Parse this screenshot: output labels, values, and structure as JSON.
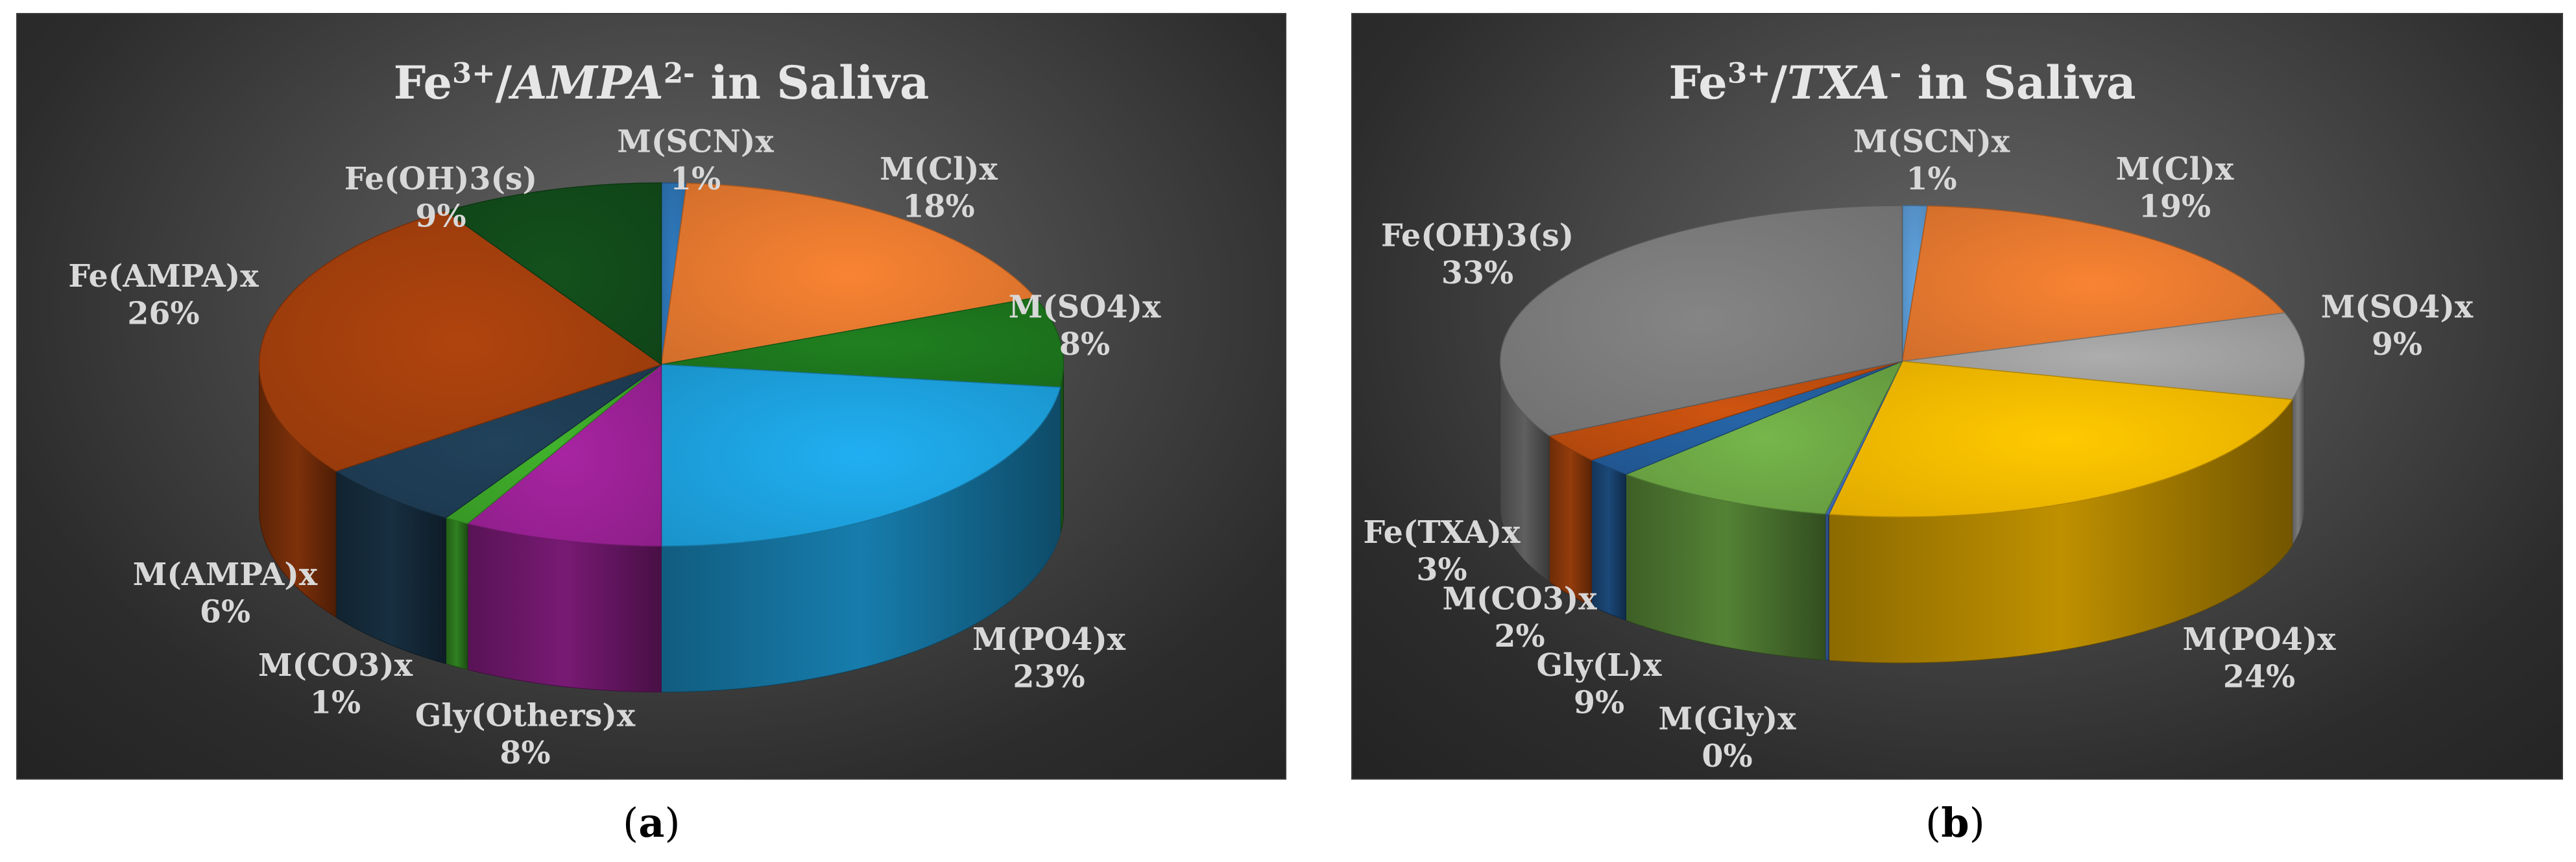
{
  "chart_data": [
    {
      "type": "pie",
      "title": {
        "base": "Fe",
        "sup1": "3+",
        "slash": "/",
        "ligand": "AMPA",
        "sup2": "2-",
        "rest": " in Saliva"
      },
      "slices": [
        {
          "label": "M(SCN)x",
          "percent_label": "1%",
          "value": 1,
          "color": "#2e75b6"
        },
        {
          "label": "M(Cl)x",
          "percent_label": "18%",
          "value": 18,
          "color": "#ed7d31"
        },
        {
          "label": "M(SO4)x",
          "percent_label": "8%",
          "value": 8,
          "color": "#1e7a1e"
        },
        {
          "label": "M(PO4)x",
          "percent_label": "23%",
          "value": 23,
          "color": "#1ea7e6"
        },
        {
          "label": "Gly(Others)x",
          "percent_label": "8%",
          "value": 8,
          "color": "#a0229a"
        },
        {
          "label": "M(CO3)x",
          "percent_label": "1%",
          "value": 1,
          "color": "#3eaa2a"
        },
        {
          "label": "M(AMPA)x",
          "percent_label": "6%",
          "value": 6,
          "color": "#1f3f57"
        },
        {
          "label": "Fe(AMPA)x",
          "percent_label": "26%",
          "value": 26,
          "color": "#a8410d"
        },
        {
          "label": "Fe(OH)3(s)",
          "percent_label": "9%",
          "value": 9,
          "color": "#124d1b"
        }
      ]
    },
    {
      "type": "pie",
      "title": {
        "base": "Fe",
        "sup1": "3+",
        "slash": "/",
        "ligand": "TXA",
        "sup2": "-",
        "rest": " in Saliva"
      },
      "slices": [
        {
          "label": "M(SCN)x",
          "percent_label": "1%",
          "value": 1,
          "color": "#5b9bd5"
        },
        {
          "label": "M(Cl)x",
          "percent_label": "19%",
          "value": 19,
          "color": "#ed7d31"
        },
        {
          "label": "M(SO4)x",
          "percent_label": "9%",
          "value": 9,
          "color": "#a5a5a5"
        },
        {
          "label": "M(PO4)x",
          "percent_label": "24%",
          "value": 24,
          "color": "#ffc000"
        },
        {
          "label": "M(Gly)x",
          "percent_label": "0%",
          "value": 0.15,
          "color": "#4472c4"
        },
        {
          "label": "Gly(L)x",
          "percent_label": "9%",
          "value": 9,
          "color": "#70ad47"
        },
        {
          "label": "M(CO3)x",
          "percent_label": "2%",
          "value": 2,
          "color": "#2460a0"
        },
        {
          "label": "Fe(TXA)x",
          "percent_label": "3%",
          "value": 3,
          "color": "#c5500f"
        },
        {
          "label": "Fe(OH)3(s)",
          "percent_label": "33%",
          "value": 33,
          "color": "#7f7f7f"
        }
      ]
    }
  ],
  "captions": {
    "a": "a",
    "b": "b"
  }
}
